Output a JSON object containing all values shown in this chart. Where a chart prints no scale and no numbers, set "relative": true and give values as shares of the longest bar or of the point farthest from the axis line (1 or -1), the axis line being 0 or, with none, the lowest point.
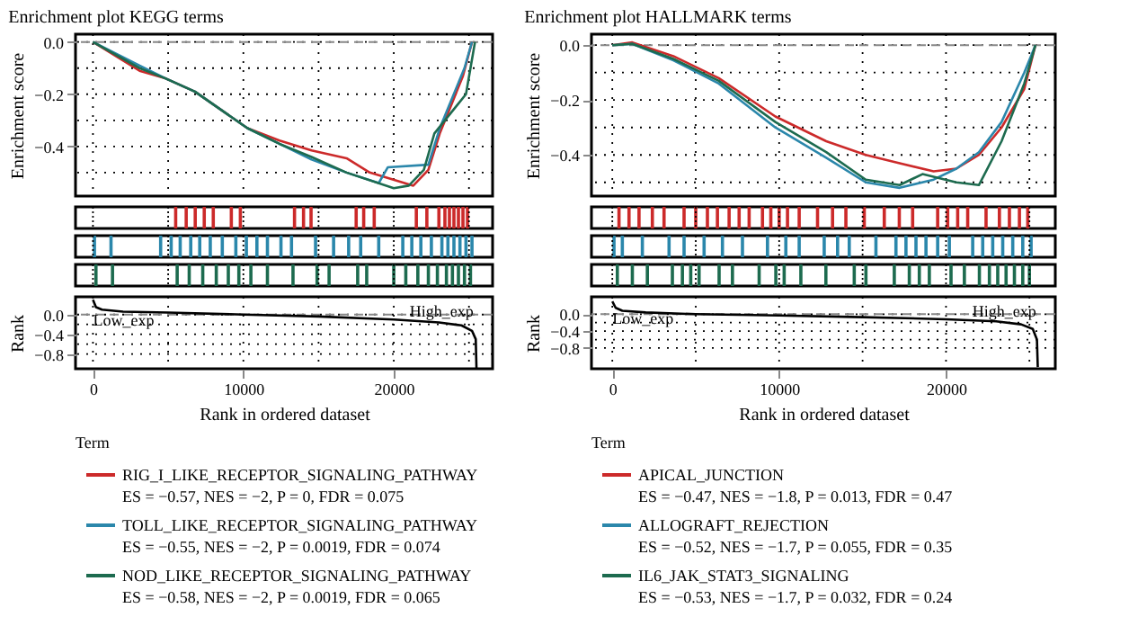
{
  "chart_data": [
    {
      "type": "line",
      "title": "Enrichment plot KEGG terms",
      "ylabel": "Enrichment score",
      "legend_title": "Term",
      "legend": "bottom",
      "grid": true,
      "tick_labels": "y",
      "line_style": "solid",
      "xlim": [
        -1160,
        26570
      ],
      "ylim": [
        -0.59,
        0.03
      ],
      "xticks": [
        {
          "value": 0,
          "label": null
        },
        {
          "value": 5000,
          "label": null
        },
        {
          "value": 10000,
          "label": null
        },
        {
          "value": 15000,
          "label": null
        },
        {
          "value": 20000,
          "label": null
        },
        {
          "value": 25000,
          "label": null
        }
      ],
      "yticks": [
        {
          "value": 0,
          "label": "0.0"
        },
        {
          "value": -0.1,
          "label": null
        },
        {
          "value": -0.2,
          "label": "−0.2"
        },
        {
          "value": -0.3,
          "label": null
        },
        {
          "value": -0.4,
          "label": "−0.4"
        },
        {
          "value": -0.5,
          "label": null
        }
      ],
      "ref_lines": [
        {
          "axis": "y",
          "value": 0,
          "line_style": "dashed",
          "color": "#888888"
        }
      ],
      "series": [
        {
          "name": "RIG_I_LIKE_RECEPTOR_SIGNALING_PATHWAY",
          "color": "#cc2a2a",
          "x": [
            0,
            3100,
            4850,
            6780,
            10270,
            12400,
            14530,
            16860,
            18400,
            21300,
            22300,
            23060,
            24600,
            25200
          ],
          "values": [
            0,
            -0.11,
            -0.14,
            -0.19,
            -0.33,
            -0.377,
            -0.415,
            -0.445,
            -0.5,
            -0.55,
            -0.49,
            -0.35,
            -0.13,
            0
          ]
        },
        {
          "name": "TOLL_LIKE_RECEPTOR_SIGNALING_PATHWAY",
          "color": "#2b87ab",
          "x": [
            0,
            3100,
            4850,
            6780,
            10270,
            12400,
            14530,
            16860,
            19000,
            19600,
            22300,
            23060,
            24700,
            25200
          ],
          "values": [
            0,
            -0.09,
            -0.14,
            -0.19,
            -0.33,
            -0.39,
            -0.45,
            -0.5,
            -0.54,
            -0.48,
            -0.47,
            -0.33,
            -0.1,
            0
          ]
        },
        {
          "name": "NOD_LIKE_RECEPTOR_SIGNALING_PATHWAY",
          "color": "#1d6b4f",
          "x": [
            0,
            3100,
            4850,
            6780,
            10270,
            12400,
            14530,
            16860,
            20000,
            21000,
            22000,
            22700,
            24800,
            25400
          ],
          "values": [
            0,
            -0.1,
            -0.14,
            -0.19,
            -0.33,
            -0.39,
            -0.44,
            -0.5,
            -0.56,
            -0.55,
            -0.49,
            -0.35,
            -0.2,
            0
          ]
        }
      ],
      "annotations": [
        "ES = −0.57, NES = −2, P = 0, FDR = 0.075",
        "ES = −0.55, NES = −2, P = 0.0019, FDR = 0.074",
        "ES = −0.58, NES = −2, P = 0.0019, FDR = 0.065"
      ]
    },
    {
      "type": "bar",
      "relative": true,
      "tick_labels": false,
      "grid": "x",
      "xlim": [
        -1160,
        26570
      ],
      "color": "#cc2a2a",
      "xticks": [
        {
          "value": 0,
          "label": null
        },
        {
          "value": 5000,
          "label": null
        },
        {
          "value": 10000,
          "label": null
        },
        {
          "value": 15000,
          "label": null
        },
        {
          "value": 20000,
          "label": null
        },
        {
          "value": 25000,
          "label": null
        }
      ],
      "x": [
        5500,
        6200,
        6800,
        7400,
        8000,
        9200,
        9800,
        13400,
        14000,
        14500,
        17500,
        18000,
        18700,
        21500,
        22200,
        23000,
        23400,
        23700,
        24000,
        24300,
        24600,
        24900
      ],
      "values": [
        1,
        1,
        1,
        1,
        1,
        1,
        1,
        1,
        1,
        1,
        1,
        1,
        1,
        1,
        1,
        1,
        1,
        1,
        1,
        1,
        1,
        1
      ]
    },
    {
      "type": "bar",
      "relative": true,
      "tick_labels": false,
      "grid": "x",
      "xlim": [
        -1160,
        26570
      ],
      "color": "#2b87ab",
      "xticks": [
        {
          "value": 0,
          "label": null
        },
        {
          "value": 5000,
          "label": null
        },
        {
          "value": 10000,
          "label": null
        },
        {
          "value": 15000,
          "label": null
        },
        {
          "value": 20000,
          "label": null
        },
        {
          "value": 25000,
          "label": null
        }
      ],
      "x": [
        100,
        1200,
        4500,
        5200,
        5800,
        6500,
        7100,
        7800,
        8600,
        9500,
        10200,
        10900,
        11600,
        12500,
        13200,
        14800,
        16000,
        17000,
        17800,
        19000,
        20600,
        21200,
        21800,
        22500,
        23200,
        23600,
        24000,
        24400,
        24800,
        25200
      ],
      "values": [
        1,
        1,
        1,
        1,
        1,
        1,
        1,
        1,
        1,
        1,
        1,
        1,
        1,
        1,
        1,
        1,
        1,
        1,
        1,
        1,
        1,
        1,
        1,
        1,
        1,
        1,
        1,
        1,
        1,
        1
      ]
    },
    {
      "type": "bar",
      "relative": true,
      "tick_labels": false,
      "grid": "x",
      "xlim": [
        -1160,
        26570
      ],
      "color": "#1d6b4f",
      "xticks": [
        {
          "value": 0,
          "label": null
        },
        {
          "value": 5000,
          "label": null
        },
        {
          "value": 10000,
          "label": null
        },
        {
          "value": 15000,
          "label": null
        },
        {
          "value": 20000,
          "label": null
        },
        {
          "value": 25000,
          "label": null
        }
      ],
      "x": [
        200,
        1300,
        5600,
        6400,
        7300,
        8200,
        9000,
        9700,
        10500,
        11600,
        13300,
        14900,
        15700,
        17600,
        18200,
        20000,
        20800,
        21600,
        22300,
        22900,
        23500,
        23900,
        24300,
        24700,
        25100
      ],
      "values": [
        1,
        1,
        1,
        1,
        1,
        1,
        1,
        1,
        1,
        1,
        1,
        1,
        1,
        1,
        1,
        1,
        1,
        1,
        1,
        1,
        1,
        1,
        1,
        1,
        1
      ]
    },
    {
      "type": "line",
      "xlabel": "Rank in ordered dataset",
      "ylabel": "Rank",
      "grid": true,
      "line_style": "solid",
      "xlim": [
        -1160,
        26570
      ],
      "ylim": [
        -1.1,
        0.36
      ],
      "xticks": [
        0,
        {
          "value": 5000,
          "label": null
        },
        10000,
        {
          "value": 15000,
          "label": null
        },
        20000,
        {
          "value": 25000,
          "label": null
        }
      ],
      "yticks": [
        {
          "value": 0,
          "label": "0.0"
        },
        {
          "value": -0.2,
          "label": null
        },
        {
          "value": -0.4,
          "label": "−0.4"
        },
        {
          "value": -0.6,
          "label": null
        },
        {
          "value": -0.8,
          "label": "−0.8"
        }
      ],
      "ref_lines": [
        {
          "axis": "y",
          "value": 0,
          "line_style": "dashed",
          "color": "#888888"
        }
      ],
      "series": [
        {
          "color": "#000000",
          "x": [
            0,
            200,
            600,
            2000,
            5000,
            10000,
            15000,
            20000,
            23000,
            24500,
            25200,
            25450,
            25500
          ],
          "values": [
            0.3,
            0.15,
            0.1,
            0.06,
            0.04,
            0,
            -0.04,
            -0.1,
            -0.16,
            -0.22,
            -0.33,
            -0.5,
            -1.1
          ]
        }
      ],
      "annotations": [
        {
          "text": "Low_exp",
          "x": 0,
          "y": -0.12
        },
        {
          "text": "High_exp",
          "x": 25300,
          "y": 0.06
        }
      ]
    },
    {
      "type": "line",
      "title": "Enrichment plot HALLMARK terms",
      "ylabel": "Enrichment score",
      "legend_title": "Term",
      "legend": "bottom",
      "grid": true,
      "tick_labels": "y",
      "line_style": "solid",
      "xlim": [
        -1250,
        26550
      ],
      "ylim": [
        -0.55,
        0.04
      ],
      "xticks": [
        {
          "value": 0,
          "label": null
        },
        {
          "value": 5000,
          "label": null
        },
        {
          "value": 10000,
          "label": null
        },
        {
          "value": 15000,
          "label": null
        },
        {
          "value": 20000,
          "label": null
        },
        {
          "value": 25000,
          "label": null
        }
      ],
      "yticks": [
        {
          "value": 0,
          "label": "0.0"
        },
        {
          "value": -0.1,
          "label": null
        },
        {
          "value": -0.2,
          "label": "−0.2"
        },
        {
          "value": -0.3,
          "label": null
        },
        {
          "value": -0.4,
          "label": "−0.4"
        },
        {
          "value": -0.5,
          "label": null
        }
      ],
      "ref_lines": [
        {
          "axis": "y",
          "value": 0,
          "line_style": "dashed",
          "color": "#888888"
        }
      ],
      "series": [
        {
          "name": "APICAL_JUNCTION",
          "color": "#cc2a2a",
          "x": [
            0,
            1200,
            3660,
            6380,
            9770,
            12820,
            15190,
            17220,
            19260,
            20620,
            21970,
            23330,
            24690,
            25360
          ],
          "values": [
            0,
            0.01,
            -0.04,
            -0.12,
            -0.26,
            -0.35,
            -0.4,
            -0.43,
            -0.46,
            -0.45,
            -0.4,
            -0.3,
            -0.16,
            0
          ]
        },
        {
          "name": "ALLOGRAFT_REJECTION",
          "color": "#2b87ab",
          "x": [
            0,
            1200,
            3660,
            6380,
            9770,
            12820,
            15190,
            17220,
            19260,
            20620,
            21970,
            23330,
            24690,
            25360
          ],
          "values": [
            0,
            0.005,
            -0.055,
            -0.14,
            -0.3,
            -0.41,
            -0.5,
            -0.52,
            -0.49,
            -0.45,
            -0.39,
            -0.28,
            -0.1,
            0
          ]
        },
        {
          "name": "IL6_JAK_STAT3_SIGNALING",
          "color": "#1d6b4f",
          "x": [
            0,
            1200,
            3660,
            6380,
            9770,
            12820,
            15190,
            17220,
            18590,
            20620,
            21970,
            23330,
            24690,
            25360
          ],
          "values": [
            0,
            0.005,
            -0.05,
            -0.13,
            -0.28,
            -0.39,
            -0.49,
            -0.51,
            -0.47,
            -0.5,
            -0.51,
            -0.35,
            -0.14,
            0
          ]
        }
      ],
      "annotations": [
        "ES = −0.47, NES = −1.8, P = 0.013, FDR = 0.47",
        "ES = −0.52, NES = −1.7, P = 0.055, FDR = 0.35",
        "ES = −0.53, NES = −1.7, P = 0.032, FDR = 0.24"
      ]
    },
    {
      "type": "bar",
      "relative": true,
      "tick_labels": false,
      "grid": "x",
      "xlim": [
        -1250,
        26550
      ],
      "color": "#cc2a2a",
      "xticks": [
        {
          "value": 0,
          "label": null
        },
        {
          "value": 5000,
          "label": null
        },
        {
          "value": 10000,
          "label": null
        },
        {
          "value": 15000,
          "label": null
        },
        {
          "value": 20000,
          "label": null
        },
        {
          "value": 25000,
          "label": null
        }
      ],
      "x": [
        400,
        1000,
        1600,
        2400,
        3100,
        4300,
        5000,
        5700,
        6300,
        7000,
        7600,
        8200,
        9000,
        9500,
        10000,
        10500,
        11200,
        12300,
        13200,
        14000,
        15100,
        16300,
        17200,
        18000,
        19500,
        20100,
        20700,
        21300,
        22400,
        23200,
        23800,
        24400,
        24900
      ],
      "values": [
        1,
        1,
        1,
        1,
        1,
        1,
        1,
        1,
        1,
        1,
        1,
        1,
        1,
        1,
        1,
        1,
        1,
        1,
        1,
        1,
        1,
        1,
        1,
        1,
        1,
        1,
        1,
        1,
        1,
        1,
        1,
        1,
        1
      ]
    },
    {
      "type": "bar",
      "relative": true,
      "tick_labels": false,
      "grid": "x",
      "xlim": [
        -1250,
        26550
      ],
      "color": "#2b87ab",
      "xticks": [
        {
          "value": 0,
          "label": null
        },
        {
          "value": 5000,
          "label": null
        },
        {
          "value": 10000,
          "label": null
        },
        {
          "value": 15000,
          "label": null
        },
        {
          "value": 20000,
          "label": null
        },
        {
          "value": 25000,
          "label": null
        }
      ],
      "x": [
        100,
        600,
        1800,
        3400,
        4300,
        5500,
        6600,
        7800,
        9300,
        10400,
        11200,
        12700,
        13500,
        14200,
        15800,
        17000,
        17600,
        18200,
        18800,
        19500,
        20200,
        21600,
        22200,
        22800,
        23400,
        24000,
        24600,
        25100
      ],
      "values": [
        1,
        1,
        1,
        1,
        1,
        1,
        1,
        1,
        1,
        1,
        1,
        1,
        1,
        1,
        1,
        1,
        1,
        1,
        1,
        1,
        1,
        1,
        1,
        1,
        1,
        1,
        1,
        1
      ]
    },
    {
      "type": "bar",
      "relative": true,
      "tick_labels": false,
      "grid": "x",
      "xlim": [
        -1250,
        26550
      ],
      "color": "#1d6b4f",
      "xticks": [
        {
          "value": 0,
          "label": null
        },
        {
          "value": 5000,
          "label": null
        },
        {
          "value": 10000,
          "label": null
        },
        {
          "value": 15000,
          "label": null
        },
        {
          "value": 20000,
          "label": null
        },
        {
          "value": 25000,
          "label": null
        }
      ],
      "x": [
        300,
        1200,
        2100,
        3600,
        4200,
        4700,
        5200,
        6400,
        7200,
        8800,
        9800,
        10300,
        11300,
        12800,
        14500,
        15200,
        16900,
        17800,
        18400,
        19000,
        20300,
        21100,
        22000,
        22600,
        23100,
        23600,
        24100,
        24600,
        25000
      ],
      "values": [
        1,
        1,
        1,
        1,
        1,
        1,
        1,
        1,
        1,
        1,
        1,
        1,
        1,
        1,
        1,
        1,
        1,
        1,
        1,
        1,
        1,
        1,
        1,
        1,
        1,
        1,
        1,
        1,
        1
      ]
    },
    {
      "type": "line",
      "xlabel": "Rank in ordered dataset",
      "ylabel": "Rank",
      "grid": true,
      "line_style": "solid",
      "xlim": [
        -1250,
        26550
      ],
      "ylim": [
        -1.29,
        0.41
      ],
      "xticks": [
        0,
        {
          "value": 5000,
          "label": null
        },
        10000,
        {
          "value": 15000,
          "label": null
        },
        20000,
        {
          "value": 25000,
          "label": null
        }
      ],
      "yticks": [
        {
          "value": 0,
          "label": "0.0"
        },
        {
          "value": -0.2,
          "label": null
        },
        {
          "value": -0.4,
          "label": "−0.4"
        },
        {
          "value": -0.6,
          "label": null
        },
        {
          "value": -0.8,
          "label": "−0.8"
        }
      ],
      "ref_lines": [
        {
          "axis": "y",
          "value": 0,
          "line_style": "dashed",
          "color": "#888888"
        }
      ],
      "series": [
        {
          "color": "#000000",
          "x": [
            0,
            200,
            600,
            2000,
            5000,
            10000,
            15000,
            20000,
            23000,
            24500,
            25200,
            25450,
            25500
          ],
          "values": [
            0.3,
            0.15,
            0.08,
            0.04,
            0.0,
            -0.03,
            -0.07,
            -0.12,
            -0.17,
            -0.24,
            -0.35,
            -0.6,
            -1.25
          ]
        }
      ],
      "annotations": [
        {
          "text": "Low_exp",
          "x": 0,
          "y": -0.1
        },
        {
          "text": "High_exp",
          "x": 25400,
          "y": 0.08
        }
      ]
    }
  ]
}
